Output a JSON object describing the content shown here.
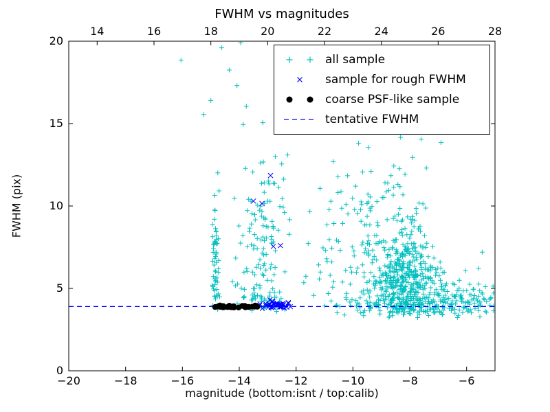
{
  "figure": {
    "title": "FWHM vs magnitudes",
    "xlabel": "magnitude (bottom:isnt / top:calib)",
    "ylabel": "FWHM (pix)"
  },
  "legend": {
    "position": "upper right",
    "items": [
      {
        "label": "all sample",
        "marker": "plus",
        "color": "#00bfbf"
      },
      {
        "label": "sample for rough FWHM",
        "marker": "x",
        "color": "#0000ff"
      },
      {
        "label": "coarse PSF-like sample",
        "marker": "dot",
        "color": "#000000"
      },
      {
        "label": "tentative FWHM",
        "marker": "dashed-line",
        "color": "#0000ff"
      }
    ]
  },
  "chart_data": {
    "type": "scatter",
    "title": "FWHM vs magnitudes",
    "xlabel": "magnitude (bottom:isnt / top:calib)",
    "ylabel": "FWHM (pix)",
    "grid": false,
    "legend_position": "upper right",
    "x_axis_bottom": {
      "name": "isnt magnitude",
      "range": [
        -20,
        -5
      ],
      "ticks": [
        -20,
        -18,
        -16,
        -14,
        -12,
        -10,
        -8,
        -6
      ]
    },
    "x_axis_top": {
      "name": "calib magnitude",
      "range": [
        13,
        28
      ],
      "ticks": [
        14,
        16,
        18,
        20,
        22,
        24,
        26,
        28
      ]
    },
    "y_axis": {
      "name": "FWHM (pix)",
      "range": [
        0,
        20
      ],
      "ticks": [
        0,
        5,
        10,
        15,
        20
      ]
    },
    "tentative_fwhm": 3.9,
    "tentative_color": "#0000ff",
    "series": [
      {
        "name": "all sample",
        "marker": "plus",
        "color": "#00bfbf",
        "clusters": [
          {
            "n": 60,
            "cx": -14.82,
            "cy": 6.3,
            "sx": 0.07,
            "sy": 2.6,
            "xmin": -15.0,
            "xmax": -14.65,
            "ymin": 3.6,
            "ymax": 14.3
          },
          {
            "n": 120,
            "cx": -13.2,
            "cy": 7.2,
            "sx": 0.55,
            "sy": 2.7,
            "xmin": -14.3,
            "xmax": -12.2,
            "ymin": 3.6,
            "ymax": 15.3
          },
          {
            "n": 35,
            "cx": -13.2,
            "cy": 4.15,
            "sx": 0.55,
            "sy": 0.3,
            "xmin": -14.2,
            "xmax": -12.2,
            "ymin": 3.5,
            "ymax": 5.2
          },
          {
            "n": 420,
            "cx": -8.15,
            "cy": 5.3,
            "sx": 0.55,
            "sy": 1.5,
            "xmin": -9.7,
            "xmax": -6.9,
            "ymin": 3.2,
            "ymax": 10.5
          },
          {
            "n": 150,
            "cx": -9.0,
            "cy": 7.8,
            "sx": 0.85,
            "sy": 2.8,
            "xmin": -11.3,
            "xmax": -7.0,
            "ymin": 3.3,
            "ymax": 15.3
          },
          {
            "n": 28,
            "cx": -10.8,
            "cy": 6.5,
            "sx": 0.6,
            "sy": 2.2,
            "xmin": -12.1,
            "xmax": -9.8,
            "ymin": 3.4,
            "ymax": 12.5
          },
          {
            "n": 140,
            "cx": -8.0,
            "cy": 4.0,
            "sx": 1.6,
            "sy": 0.35,
            "xmin": -11.2,
            "xmax": -5.05,
            "ymin": 3.3,
            "ymax": 5.0
          },
          {
            "n": 90,
            "cx": -6.3,
            "cy": 4.4,
            "sx": 0.8,
            "sy": 0.9,
            "xmin": -7.3,
            "xmax": -5.02,
            "ymin": 3.2,
            "ymax": 7.6
          }
        ],
        "points": [
          [
            -16.05,
            18.85
          ],
          [
            -14.62,
            19.6
          ],
          [
            -14.35,
            18.25
          ],
          [
            -13.95,
            19.9
          ],
          [
            -14.08,
            17.3
          ],
          [
            -15.25,
            15.55
          ],
          [
            -15.0,
            16.4
          ],
          [
            -13.75,
            16.05
          ],
          [
            -12.6,
            14.9
          ],
          [
            -12.3,
            13.1
          ],
          [
            -9.8,
            13.8
          ],
          [
            -8.85,
            14.9
          ],
          [
            -7.6,
            14.05
          ],
          [
            -7.9,
            12.95
          ],
          [
            -6.9,
            13.85
          ],
          [
            -5.45,
            7.2
          ],
          [
            -5.3,
            3.55
          ],
          [
            -5.15,
            4.4
          ]
        ]
      },
      {
        "name": "sample for rough FWHM",
        "marker": "x",
        "color": "#0000ff",
        "clusters": [
          {
            "n": 42,
            "cx": -12.75,
            "cy": 4.0,
            "sx": 0.38,
            "sy": 0.12,
            "xmin": -13.45,
            "xmax": -12.15,
            "ymin": 3.72,
            "ymax": 4.38
          }
        ],
        "points": [
          [
            -13.5,
            10.3
          ],
          [
            -13.2,
            10.15
          ],
          [
            -12.9,
            11.85
          ],
          [
            -12.8,
            7.55
          ],
          [
            -12.55,
            7.6
          ]
        ]
      },
      {
        "name": "coarse PSF-like sample",
        "marker": "dot",
        "color": "#000000",
        "clusters": [
          {
            "n": 30,
            "uniform_x": true,
            "cy": 3.9,
            "sy": 0.04,
            "xmin": -14.88,
            "xmax": -13.35,
            "ymin": 3.78,
            "ymax": 4.02
          }
        ],
        "points": []
      }
    ]
  }
}
